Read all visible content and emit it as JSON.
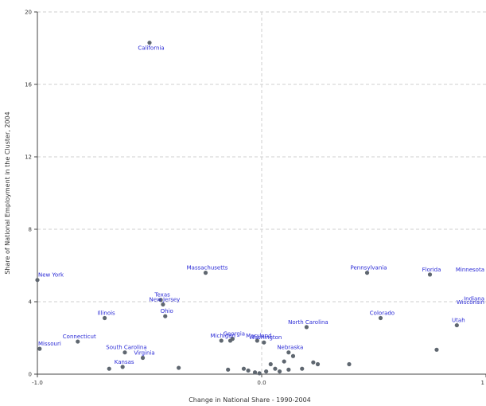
{
  "chart_data": {
    "type": "scatter",
    "xlabel": "Change in National Share - 1990-2004",
    "ylabel": "Share of National Employment in the Cluster, 2004",
    "xlim": [
      -1.0,
      1.0
    ],
    "ylim": [
      0,
      20
    ],
    "x_ticks": [
      -1.0,
      0.0,
      1.0
    ],
    "x_tick_labels": [
      "-1.0",
      "0.0",
      "1"
    ],
    "y_ticks": [
      0,
      4,
      8,
      12,
      16,
      20
    ],
    "y_tick_labels": [
      "0",
      "4",
      "8",
      "12",
      "16",
      "20"
    ],
    "grid": true,
    "colors": {
      "point": "#5f6770",
      "label": "#2a2ad6",
      "grid": "#cfcfcf",
      "axis": "#444444"
    },
    "points": [
      {
        "label": "California",
        "x": -0.5,
        "y": 18.3
      },
      {
        "label": "New York",
        "x": -1.0,
        "y": 5.2
      },
      {
        "label": "Massachusetts",
        "x": -0.25,
        "y": 5.6
      },
      {
        "label": "Pennsylvania",
        "x": 0.47,
        "y": 5.6
      },
      {
        "label": "Florida",
        "x": 0.75,
        "y": 5.5
      },
      {
        "label": "Minnesota",
        "x": 1.04,
        "y": 5.5
      },
      {
        "label": "Texas",
        "x": -0.45,
        "y": 4.1
      },
      {
        "label": "New Jersey",
        "x": -0.44,
        "y": 3.85
      },
      {
        "label": "Ohio",
        "x": -0.43,
        "y": 3.2
      },
      {
        "label": "Illinois",
        "x": -0.7,
        "y": 3.1
      },
      {
        "label": "Colorado",
        "x": 0.53,
        "y": 3.1
      },
      {
        "label": "Indiana",
        "x": 1.03,
        "y": 3.9
      },
      {
        "label": "Wisconsin",
        "x": 1.02,
        "y": 3.7
      },
      {
        "label": "Utah",
        "x": 0.87,
        "y": 2.7
      },
      {
        "label": "North Carolina",
        "x": 0.2,
        "y": 2.6
      },
      {
        "label": "Georgia",
        "x": -0.13,
        "y": 1.95
      },
      {
        "label": "Michigan",
        "x": -0.18,
        "y": 1.85
      },
      {
        "label": "Maryland",
        "x": -0.02,
        "y": 1.85
      },
      {
        "label": "Washington",
        "x": 0.01,
        "y": 1.75
      },
      {
        "label": "Connecticut",
        "x": -0.82,
        "y": 1.8
      },
      {
        "label": "Missouri",
        "x": -0.99,
        "y": 1.4
      },
      {
        "label": "South Carolina",
        "x": -0.61,
        "y": 1.2
      },
      {
        "label": "Virginia",
        "x": -0.53,
        "y": 0.9
      },
      {
        "label": "Nebraska",
        "x": 0.12,
        "y": 1.2
      },
      {
        "label": "Kansas",
        "x": -0.62,
        "y": 0.4
      },
      {
        "label": "",
        "x": -0.68,
        "y": 0.3
      },
      {
        "label": "",
        "x": -0.37,
        "y": 0.35
      },
      {
        "label": "",
        "x": -0.15,
        "y": 0.25
      },
      {
        "label": "",
        "x": -0.08,
        "y": 0.3
      },
      {
        "label": "",
        "x": -0.06,
        "y": 0.2
      },
      {
        "label": "",
        "x": -0.03,
        "y": 0.1
      },
      {
        "label": "",
        "x": -0.01,
        "y": 0.05
      },
      {
        "label": "",
        "x": 0.02,
        "y": 0.15
      },
      {
        "label": "",
        "x": 0.04,
        "y": 0.55
      },
      {
        "label": "",
        "x": 0.06,
        "y": 0.3
      },
      {
        "label": "",
        "x": 0.08,
        "y": 0.15
      },
      {
        "label": "",
        "x": 0.1,
        "y": 0.7
      },
      {
        "label": "",
        "x": 0.12,
        "y": 0.25
      },
      {
        "label": "",
        "x": 0.14,
        "y": 1.0
      },
      {
        "label": "",
        "x": 0.18,
        "y": 0.3
      },
      {
        "label": "",
        "x": 0.23,
        "y": 0.65
      },
      {
        "label": "",
        "x": 0.25,
        "y": 0.55
      },
      {
        "label": "",
        "x": 0.39,
        "y": 0.55
      },
      {
        "label": "",
        "x": 0.78,
        "y": 1.35
      },
      {
        "label": "",
        "x": -0.14,
        "y": 1.85
      }
    ]
  }
}
